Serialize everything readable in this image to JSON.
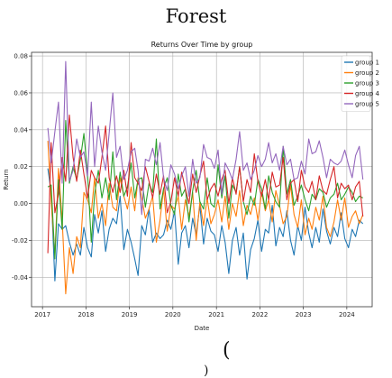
{
  "page": {
    "title": "Forest",
    "bottom_glyph": "(",
    "bottom_glyph_2": ")"
  },
  "chart_data": {
    "type": "line",
    "title": "Returns Over Time by group",
    "xlabel": "Date",
    "ylabel": "Return",
    "x_ticks": [
      "2017",
      "2018",
      "2019",
      "2020",
      "2021",
      "2022",
      "2023",
      "2024"
    ],
    "y_ticks": [
      "-0.04",
      "-0.02",
      "0.00",
      "0.02",
      "0.04",
      "0.06",
      "0.08"
    ],
    "xlim": [
      "2016-10-01",
      "2024-08-01"
    ],
    "ylim": [
      -0.056,
      0.082
    ],
    "grid": true,
    "legend_position": "top-right",
    "x": [
      "2017-02",
      "2017-03",
      "2017-04",
      "2017-05",
      "2017-06",
      "2017-07",
      "2017-08",
      "2017-09",
      "2017-10",
      "2017-11",
      "2017-12",
      "2018-01",
      "2018-02",
      "2018-03",
      "2018-04",
      "2018-05",
      "2018-06",
      "2018-07",
      "2018-08",
      "2018-09",
      "2018-10",
      "2018-11",
      "2018-12",
      "2019-01",
      "2019-02",
      "2019-03",
      "2019-04",
      "2019-05",
      "2019-06",
      "2019-07",
      "2019-08",
      "2019-09",
      "2019-10",
      "2019-11",
      "2019-12",
      "2020-01",
      "2020-02",
      "2020-03",
      "2020-04",
      "2020-05",
      "2020-06",
      "2020-07",
      "2020-08",
      "2020-09",
      "2020-10",
      "2020-11",
      "2020-12",
      "2021-01",
      "2021-02",
      "2021-03",
      "2021-04",
      "2021-05",
      "2021-06",
      "2021-07",
      "2021-08",
      "2021-09",
      "2021-10",
      "2021-11",
      "2021-12",
      "2022-01",
      "2022-02",
      "2022-03",
      "2022-04",
      "2022-05",
      "2022-06",
      "2022-07",
      "2022-08",
      "2022-09",
      "2022-10",
      "2022-11",
      "2022-12",
      "2023-01",
      "2023-02",
      "2023-03",
      "2023-04",
      "2023-05",
      "2023-06",
      "2023-07",
      "2023-08",
      "2023-09",
      "2023-10",
      "2023-11",
      "2023-12",
      "2024-01",
      "2024-02",
      "2024-03",
      "2024-04",
      "2024-05"
    ],
    "series": [
      {
        "name": "group 1",
        "color": "#1f77b4",
        "values": [
          0.019,
          0.006,
          -0.042,
          -0.011,
          -0.014,
          -0.012,
          -0.021,
          -0.028,
          -0.022,
          -0.028,
          -0.013,
          -0.024,
          -0.029,
          -0.006,
          -0.016,
          -0.004,
          -0.026,
          -0.014,
          -0.008,
          -0.011,
          0.004,
          -0.025,
          -0.014,
          -0.021,
          -0.03,
          -0.039,
          -0.012,
          -0.017,
          -0.003,
          -0.021,
          -0.016,
          -0.019,
          -0.017,
          -0.009,
          -0.014,
          -0.004,
          -0.033,
          -0.016,
          -0.012,
          -0.024,
          -0.008,
          -0.017,
          -0.001,
          -0.022,
          -0.008,
          -0.015,
          -0.017,
          -0.026,
          -0.012,
          -0.021,
          -0.038,
          -0.02,
          -0.013,
          -0.028,
          -0.016,
          -0.041,
          -0.025,
          -0.019,
          -0.009,
          -0.026,
          -0.014,
          -0.016,
          -0.001,
          -0.023,
          -0.013,
          -0.018,
          -0.004,
          -0.02,
          -0.028,
          -0.012,
          -0.02,
          -0.002,
          -0.016,
          -0.024,
          -0.013,
          -0.021,
          -0.003,
          -0.015,
          -0.022,
          -0.013,
          -0.018,
          -0.005,
          -0.019,
          -0.024,
          -0.014,
          -0.018,
          -0.009,
          -0.011
        ]
      },
      {
        "name": "group 2",
        "color": "#ff7f0e",
        "values": [
          0.034,
          0.001,
          -0.028,
          0.019,
          -0.009,
          -0.049,
          -0.024,
          -0.038,
          -0.018,
          -0.024,
          0.006,
          0.002,
          -0.005,
          0.014,
          -0.008,
          0.0,
          -0.012,
          0.011,
          -0.002,
          -0.004,
          0.014,
          0.004,
          -0.003,
          0.009,
          -0.004,
          0.014,
          0.003,
          -0.008,
          -0.003,
          0.004,
          -0.021,
          -0.009,
          0.008,
          -0.015,
          -0.001,
          -0.003,
          0.004,
          -0.014,
          0.002,
          -0.007,
          0.006,
          -0.02,
          0.001,
          -0.012,
          0.003,
          -0.011,
          -0.006,
          0.002,
          -0.01,
          0.004,
          -0.014,
          0.0,
          -0.007,
          0.007,
          -0.012,
          -0.001,
          -0.006,
          0.003,
          -0.009,
          0.006,
          -0.004,
          0.002,
          -0.01,
          0.007,
          -0.001,
          -0.011,
          -0.007,
          0.01,
          -0.006,
          -0.013,
          0.002,
          -0.017,
          -0.008,
          -0.014,
          -0.002,
          -0.009,
          0.004,
          -0.013,
          -0.018,
          -0.01,
          0.002,
          -0.009,
          0.003,
          -0.013,
          -0.007,
          -0.004,
          -0.011,
          -0.006
        ]
      },
      {
        "name": "group 3",
        "color": "#2ca02c",
        "values": [
          0.009,
          0.01,
          -0.03,
          0.013,
          -0.014,
          0.045,
          0.011,
          0.02,
          0.013,
          0.024,
          0.038,
          0.016,
          -0.021,
          0.005,
          0.018,
          0.003,
          0.014,
          0.002,
          0.028,
          0.002,
          0.017,
          0.004,
          0.009,
          0.022,
          0.003,
          0.013,
          0.014,
          -0.002,
          0.011,
          0.006,
          0.035,
          -0.003,
          0.008,
          0.014,
          -0.001,
          -0.006,
          0.016,
          0.004,
          0.008,
          -0.01,
          0.007,
          0.018,
          0.001,
          -0.003,
          0.014,
          0.0,
          -0.002,
          0.021,
          0.003,
          0.015,
          -0.008,
          0.01,
          0.006,
          0.02,
          0.001,
          -0.006,
          0.004,
          -0.001,
          0.013,
          0.008,
          -0.003,
          0.015,
          0.006,
          0.001,
          -0.002,
          0.031,
          0.005,
          0.013,
          -0.001,
          0.004,
          0.01,
          0.002,
          -0.004,
          0.005,
          0.002,
          0.008,
          0.006,
          -0.002,
          0.003,
          0.005,
          0.011,
          0.002,
          0.005,
          0.009,
          0.006,
          0.001,
          0.004,
          0.003
        ]
      },
      {
        "name": "group 4",
        "color": "#d62728",
        "values": [
          -0.027,
          0.033,
          -0.005,
          0.005,
          0.025,
          0.012,
          0.048,
          0.025,
          0.012,
          0.029,
          0.016,
          0.003,
          0.018,
          0.014,
          0.011,
          0.025,
          0.042,
          0.014,
          0.006,
          0.015,
          0.006,
          0.018,
          0.004,
          0.033,
          0.014,
          0.011,
          0.007,
          0.02,
          0.012,
          0.003,
          0.016,
          0.005,
          0.015,
          -0.005,
          0.001,
          0.014,
          0.004,
          0.017,
          0.008,
          0.0,
          0.016,
          0.006,
          0.015,
          0.023,
          0.002,
          0.008,
          0.011,
          0.004,
          0.013,
          0.018,
          0.0,
          0.014,
          0.005,
          0.02,
          0.001,
          0.013,
          0.006,
          0.027,
          0.012,
          0.004,
          0.013,
          0.002,
          0.017,
          0.009,
          0.01,
          0.025,
          0.002,
          0.011,
          0.013,
          0.001,
          0.018,
          0.009,
          0.006,
          0.012,
          0.002,
          0.015,
          0.007,
          0.005,
          0.013,
          0.02,
          0.003,
          0.011,
          0.008,
          0.01,
          0.002,
          0.009,
          0.012,
          -0.007
        ]
      },
      {
        "name": "group 5",
        "color": "#9467bd",
        "values": [
          0.041,
          0.022,
          0.039,
          0.055,
          0.011,
          0.077,
          0.012,
          0.018,
          0.035,
          0.025,
          0.028,
          0.015,
          0.055,
          0.02,
          0.042,
          0.028,
          0.018,
          0.038,
          0.06,
          0.025,
          0.031,
          0.013,
          0.018,
          0.028,
          0.03,
          0.018,
          -0.006,
          0.024,
          0.023,
          0.03,
          0.021,
          0.033,
          0.014,
          0.007,
          0.021,
          0.016,
          0.008,
          0.015,
          0.02,
          0.004,
          0.024,
          0.011,
          0.014,
          0.032,
          0.025,
          0.024,
          0.019,
          0.029,
          0.005,
          0.022,
          0.018,
          0.013,
          0.024,
          0.039,
          0.018,
          0.022,
          0.013,
          0.018,
          0.026,
          0.02,
          0.024,
          0.033,
          0.022,
          0.027,
          0.018,
          0.031,
          0.021,
          0.024,
          0.013,
          0.014,
          0.023,
          0.016,
          0.035,
          0.027,
          0.028,
          0.034,
          0.025,
          0.014,
          0.024,
          0.022,
          0.021,
          0.023,
          0.029,
          0.021,
          0.014,
          0.026,
          0.031,
          0.013
        ]
      }
    ]
  }
}
